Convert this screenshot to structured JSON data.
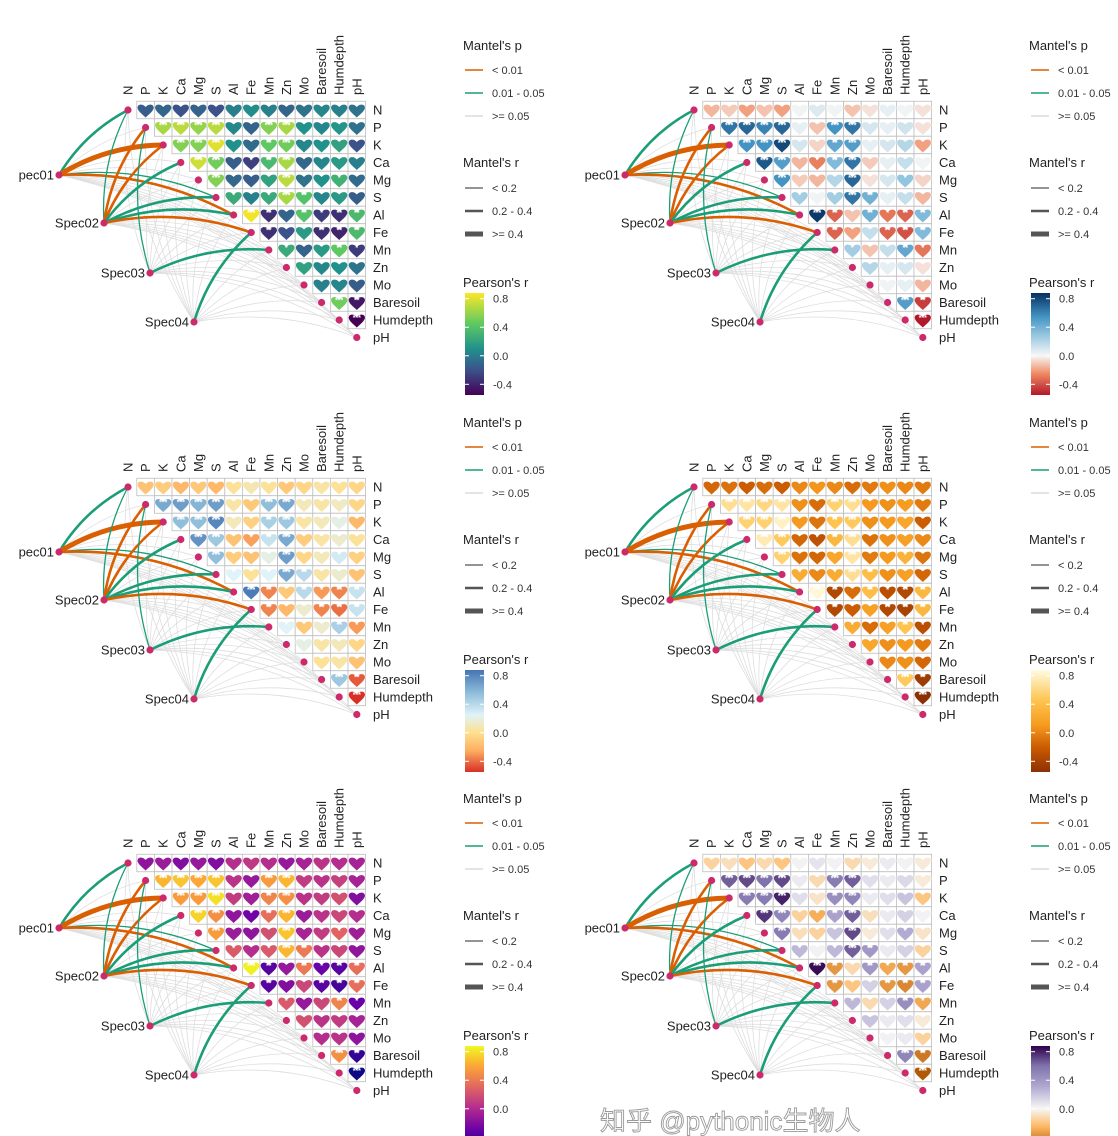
{
  "chart_data": {
    "type": "heatmap",
    "variables": [
      "N",
      "P",
      "K",
      "Ca",
      "Mg",
      "S",
      "Al",
      "Fe",
      "Mn",
      "Zn",
      "Mo",
      "Baresoil",
      "Humdepth",
      "pH"
    ],
    "species": [
      "pec01",
      "Spec02",
      "Spec03",
      "Spec04"
    ],
    "pearson_r_upper": [
      [
        -0.15,
        -0.1,
        -0.2,
        -0.12,
        -0.2,
        0.02,
        0.08,
        0.02,
        -0.12,
        -0.05,
        0.05,
        0.02,
        -0.05
      ],
      [
        0.65,
        0.7,
        0.6,
        0.7,
        0.05,
        -0.12,
        0.55,
        0.65,
        0.1,
        0.05,
        0.12,
        -0.05
      ],
      [
        0.55,
        0.55,
        0.8,
        0.1,
        -0.08,
        0.45,
        0.5,
        0.05,
        0.1,
        0.2,
        -0.2
      ],
      [
        0.75,
        0.5,
        -0.15,
        -0.28,
        0.35,
        0.65,
        -0.1,
        0.05,
        0.15,
        0.02
      ],
      [
        0.55,
        -0.1,
        -0.15,
        0.2,
        0.7,
        -0.05,
        0.1,
        0.3,
        -0.08
      ],
      [
        0.25,
        0.02,
        0.25,
        0.65,
        0.4,
        0.05,
        0.15,
        -0.15
      ],
      [
        0.85,
        -0.35,
        -0.12,
        0.4,
        -0.3,
        -0.35,
        0.35
      ],
      [
        -0.35,
        -0.2,
        0.15,
        -0.35,
        -0.4,
        0.35
      ],
      [
        0.25,
        -0.12,
        0.15,
        0.45,
        -0.3
      ],
      [
        0.2,
        0.05,
        0.1,
        -0.05
      ],
      [
        0.02,
        0.05,
        -0.15
      ],
      [
        0.5,
        -0.45
      ],
      [
        -0.55
      ]
    ],
    "mantel_links": [
      {
        "species": "pec01",
        "env": "N",
        "p": "0.01 - 0.05",
        "r": "0.2 - 0.4"
      },
      {
        "species": "pec01",
        "env": "K",
        "p": "< 0.01",
        "r": ">= 0.4"
      },
      {
        "species": "pec01",
        "env": "S",
        "p": "0.01 - 0.05",
        "r": "< 0.2"
      },
      {
        "species": "pec01",
        "env": "Al",
        "p": "< 0.01",
        "r": "0.2 - 0.4"
      },
      {
        "species": "Spec02",
        "env": "N",
        "p": "0.01 - 0.05",
        "r": "< 0.2"
      },
      {
        "species": "Spec02",
        "env": "P",
        "p": "< 0.01",
        "r": "0.2 - 0.4"
      },
      {
        "species": "Spec02",
        "env": "K",
        "p": "< 0.01",
        "r": "0.2 - 0.4"
      },
      {
        "species": "Spec02",
        "env": "Ca",
        "p": "0.01 - 0.05",
        "r": "0.2 - 0.4"
      },
      {
        "species": "Spec02",
        "env": "S",
        "p": "0.01 - 0.05",
        "r": "0.2 - 0.4"
      },
      {
        "species": "Spec02",
        "env": "Al",
        "p": "0.01 - 0.05",
        "r": "0.2 - 0.4"
      },
      {
        "species": "Spec02",
        "env": "Fe",
        "p": "< 0.01",
        "r": "0.2 - 0.4"
      },
      {
        "species": "Spec03",
        "env": "P",
        "p": "0.01 - 0.05",
        "r": "< 0.2"
      },
      {
        "species": "Spec03",
        "env": "Mn",
        "p": "0.01 - 0.05",
        "r": "0.2 - 0.4"
      },
      {
        "species": "Spec04",
        "env": "Fe",
        "p": "0.01 - 0.05",
        "r": "0.2 - 0.4"
      }
    ],
    "legend": {
      "mantel_p_title": "Mantel's p",
      "mantel_p_items": [
        {
          "label": "< 0.01",
          "color": "#d95f02"
        },
        {
          "label": "0.01 - 0.05",
          "color": "#1b9e77"
        },
        {
          "label": ">= 0.05",
          "color": "#dcdcdc"
        }
      ],
      "mantel_r_title": "Mantel's r",
      "mantel_r_items": [
        {
          "label": "< 0.2"
        },
        {
          "label": "0.2 - 0.4"
        },
        {
          "label": ">= 0.4"
        }
      ],
      "pearson_title": "Pearson's r"
    },
    "color_range": [
      -0.55,
      0.88
    ],
    "panels": [
      {
        "palette": "viridis",
        "ticks": [
          "0.8",
          "0.4",
          "0.0",
          "-0.4"
        ],
        "stops": [
          [
            -0.55,
            "#440154"
          ],
          [
            -0.2,
            "#3b528b"
          ],
          [
            0.1,
            "#21918c"
          ],
          [
            0.45,
            "#5ec962"
          ],
          [
            0.88,
            "#fde725"
          ]
        ]
      },
      {
        "palette": "RdBu",
        "ticks": [
          "0.8",
          "0.4",
          "0.0",
          "-0.4"
        ],
        "stops": [
          [
            -0.55,
            "#b2182b"
          ],
          [
            -0.25,
            "#ef8a62"
          ],
          [
            0,
            "#f7f7f7"
          ],
          [
            0.3,
            "#92c5de"
          ],
          [
            0.55,
            "#4393c3"
          ],
          [
            0.88,
            "#053061"
          ]
        ]
      },
      {
        "palette": "RdYlBu",
        "ticks": [
          "0.8",
          "0.4",
          "0.0",
          "-0.4"
        ],
        "stops": [
          [
            -0.55,
            "#d73027"
          ],
          [
            -0.25,
            "#fdae61"
          ],
          [
            0,
            "#fee090"
          ],
          [
            0.25,
            "#e0f3f8"
          ],
          [
            0.55,
            "#91bfdb"
          ],
          [
            0.88,
            "#4575b4"
          ]
        ]
      },
      {
        "palette": "YlOrBr",
        "ticks": [
          "0.8",
          "0.4",
          "0.0",
          "-0.4"
        ],
        "stops": [
          [
            -0.55,
            "#8c3003"
          ],
          [
            -0.2,
            "#cc5c02"
          ],
          [
            0.1,
            "#f59a1e"
          ],
          [
            0.45,
            "#fec44f"
          ],
          [
            0.88,
            "#fffbe0"
          ]
        ]
      },
      {
        "palette": "plasma",
        "ticks": [
          "0.8",
          "0.4",
          "0.0"
        ],
        "stops": [
          [
            -0.55,
            "#0d0887"
          ],
          [
            -0.3,
            "#6a00a8"
          ],
          [
            0,
            "#b12a90"
          ],
          [
            0.3,
            "#e16462"
          ],
          [
            0.6,
            "#fca636"
          ],
          [
            0.88,
            "#f0f921"
          ]
        ]
      },
      {
        "palette": "PuOr",
        "ticks": [
          "0.8",
          "0.4",
          "0.0"
        ],
        "stops": [
          [
            -0.55,
            "#b35806"
          ],
          [
            -0.25,
            "#fdb863"
          ],
          [
            0,
            "#f7f7f7"
          ],
          [
            0.3,
            "#b2abd2"
          ],
          [
            0.6,
            "#8073ac"
          ],
          [
            0.88,
            "#2d004b"
          ]
        ]
      }
    ]
  },
  "watermark": "知乎 @pythonic生物人"
}
